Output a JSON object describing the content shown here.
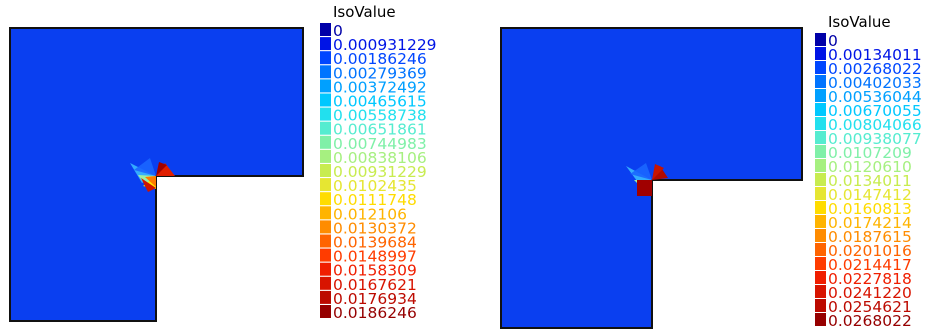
{
  "panels": [
    {
      "colors": {
        "domain_fill": "#0a3ff0",
        "domain_stroke": "#111111"
      },
      "legend": {
        "title": "IsoValue",
        "values": [
          "0",
          "0.000931229",
          "0.00186246",
          "0.00279369",
          "0.00372492",
          "0.00465615",
          "0.00558738",
          "0.00651861",
          "0.00744983",
          "0.00838106",
          "0.00931229",
          "0.0102435",
          "0.0111748",
          "0.012106",
          "0.0130372",
          "0.0139684",
          "0.0148997",
          "0.0158309",
          "0.0167621",
          "0.0176934",
          "0.0186246"
        ],
        "colors": [
          "#0000a8",
          "#0014e6",
          "#0046ff",
          "#0074ff",
          "#00a0ff",
          "#00c8ff",
          "#22e0ee",
          "#55ecd0",
          "#80f0a8",
          "#a6f080",
          "#c8ec50",
          "#e6e632",
          "#ffdc00",
          "#ffb400",
          "#ff8c00",
          "#ff6400",
          "#ff3c00",
          "#f01e00",
          "#d81400",
          "#bc0a00",
          "#960000"
        ]
      }
    },
    {
      "colors": {
        "domain_fill": "#0a3ff0",
        "domain_stroke": "#111111"
      },
      "legend": {
        "title": "IsoValue",
        "values": [
          "0",
          "0.00134011",
          "0.00268022",
          "0.00402033",
          "0.00536044",
          "0.00670055",
          "0.00804066",
          "0.00938077",
          "0.0107209",
          "0.0120610",
          "0.0134011",
          "0.0147412",
          "0.0160813",
          "0.0174214",
          "0.0187615",
          "0.0201016",
          "0.0214417",
          "0.0227818",
          "0.0241220",
          "0.0254621",
          "0.0268022"
        ],
        "colors": [
          "#0000a8",
          "#0014e6",
          "#0046ff",
          "#0074ff",
          "#00a0ff",
          "#00c8ff",
          "#22e0ee",
          "#55ecd0",
          "#80f0a8",
          "#a6f080",
          "#c8ec50",
          "#e6e632",
          "#ffdc00",
          "#ffb400",
          "#ff8c00",
          "#ff6400",
          "#ff3c00",
          "#f01e00",
          "#d81400",
          "#bc0a00",
          "#960000"
        ]
      }
    }
  ]
}
